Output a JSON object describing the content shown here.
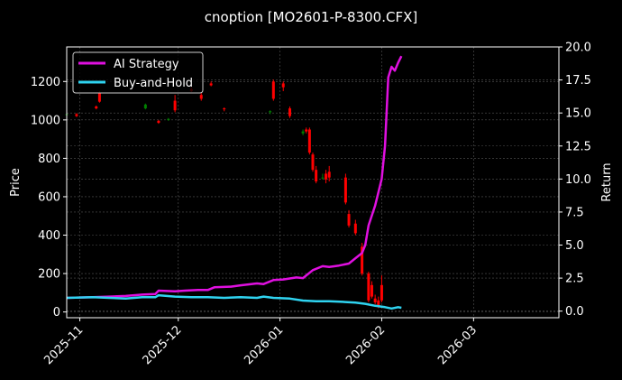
{
  "chart_data": {
    "type": "candlestick_with_lines",
    "title": "cnoption [MO2601-P-8300.CFX]",
    "ylabel_left": "Price",
    "ylabel_right": "Return",
    "x_ticks": [
      "2025-11",
      "2025-12",
      "2026-01",
      "2026-02",
      "2026-03"
    ],
    "x_tick_dates": [
      "2025-11-01",
      "2025-12-01",
      "2026-01-01",
      "2026-02-01",
      "2026-03-01"
    ],
    "x_range": [
      "2025-10-28",
      "2026-03-27"
    ],
    "y_left_ticks": [
      0,
      200,
      400,
      600,
      800,
      1000,
      1200
    ],
    "y_left_range": [
      -30,
      1380
    ],
    "y_right_ticks": [
      "0.0",
      "2.5",
      "5.0",
      "7.5",
      "10.0",
      "12.5",
      "15.0",
      "17.5",
      "20.0"
    ],
    "y_right_range": [
      -0.5,
      20.0
    ],
    "grid": true,
    "legend_position": "top-left",
    "colors": {
      "background": "#000000",
      "up": "#008000",
      "down": "#ff0000",
      "ai": "#e010e0",
      "bh": "#2fd3f0",
      "grid": "#555555"
    },
    "candles": [
      {
        "date": "2025-10-28",
        "open": 1030,
        "high": 1045,
        "low": 1020,
        "close": 1030
      },
      {
        "date": "2025-10-31",
        "open": 1030,
        "high": 1035,
        "low": 1015,
        "close": 1020
      },
      {
        "date": "2025-11-06",
        "open": 1070,
        "high": 1075,
        "low": 1055,
        "close": 1060
      },
      {
        "date": "2025-11-07",
        "open": 1140,
        "high": 1150,
        "low": 1090,
        "close": 1095
      },
      {
        "date": "2025-11-21",
        "open": 1060,
        "high": 1085,
        "low": 1055,
        "close": 1080
      },
      {
        "date": "2025-11-25",
        "open": 995,
        "high": 1000,
        "low": 980,
        "close": 985
      },
      {
        "date": "2025-11-28",
        "open": 1000,
        "high": 1010,
        "low": 995,
        "close": 1005
      },
      {
        "date": "2025-11-30",
        "open": 1100,
        "high": 1130,
        "low": 1040,
        "close": 1050
      },
      {
        "date": "2025-12-05",
        "open": 1160,
        "high": 1170,
        "low": 1145,
        "close": 1150
      },
      {
        "date": "2025-12-08",
        "open": 1130,
        "high": 1140,
        "low": 1100,
        "close": 1110
      },
      {
        "date": "2025-12-11",
        "open": 1190,
        "high": 1200,
        "low": 1175,
        "close": 1180
      },
      {
        "date": "2025-12-15",
        "open": 1060,
        "high": 1065,
        "low": 1045,
        "close": 1055
      },
      {
        "date": "2025-12-29",
        "open": 1040,
        "high": 1050,
        "low": 1030,
        "close": 1045
      },
      {
        "date": "2025-12-30",
        "open": 1200,
        "high": 1210,
        "low": 1100,
        "close": 1110
      },
      {
        "date": "2026-01-02",
        "open": 1190,
        "high": 1200,
        "low": 1150,
        "close": 1170
      },
      {
        "date": "2026-01-04",
        "open": 1060,
        "high": 1070,
        "low": 1010,
        "close": 1020
      },
      {
        "date": "2026-01-08",
        "open": 930,
        "high": 950,
        "low": 920,
        "close": 940
      },
      {
        "date": "2026-01-09",
        "open": 950,
        "high": 960,
        "low": 930,
        "close": 940
      },
      {
        "date": "2026-01-10",
        "open": 950,
        "high": 960,
        "low": 820,
        "close": 830
      },
      {
        "date": "2026-01-11",
        "open": 820,
        "high": 830,
        "low": 730,
        "close": 740
      },
      {
        "date": "2026-01-12",
        "open": 740,
        "high": 760,
        "low": 670,
        "close": 680
      },
      {
        "date": "2026-01-14",
        "open": 700,
        "high": 720,
        "low": 690,
        "close": 700
      },
      {
        "date": "2026-01-15",
        "open": 720,
        "high": 740,
        "low": 670,
        "close": 690
      },
      {
        "date": "2026-01-16",
        "open": 730,
        "high": 760,
        "low": 680,
        "close": 700
      },
      {
        "date": "2026-01-21",
        "open": 700,
        "high": 720,
        "low": 560,
        "close": 570
      },
      {
        "date": "2026-01-22",
        "open": 510,
        "high": 530,
        "low": 440,
        "close": 450
      },
      {
        "date": "2026-01-24",
        "open": 460,
        "high": 480,
        "low": 400,
        "close": 410
      },
      {
        "date": "2026-01-26",
        "open": 340,
        "high": 360,
        "low": 190,
        "close": 200
      },
      {
        "date": "2026-01-28",
        "open": 200,
        "high": 210,
        "low": 50,
        "close": 60
      },
      {
        "date": "2026-01-29",
        "open": 140,
        "high": 160,
        "low": 70,
        "close": 80
      },
      {
        "date": "2026-01-30",
        "open": 70,
        "high": 90,
        "low": 40,
        "close": 50
      },
      {
        "date": "2026-01-31",
        "open": 60,
        "high": 80,
        "low": 20,
        "close": 30
      },
      {
        "date": "2026-02-01",
        "open": 140,
        "high": 190,
        "low": 50,
        "close": 60
      }
    ],
    "series": [
      {
        "name": "AI Strategy",
        "points": [
          [
            "2025-10-28",
            1.0
          ],
          [
            "2025-11-05",
            1.05
          ],
          [
            "2025-11-10",
            1.1
          ],
          [
            "2025-11-15",
            1.15
          ],
          [
            "2025-11-20",
            1.25
          ],
          [
            "2025-11-24",
            1.3
          ],
          [
            "2025-11-25",
            1.55
          ],
          [
            "2025-11-30",
            1.5
          ],
          [
            "2025-12-03",
            1.55
          ],
          [
            "2025-12-07",
            1.6
          ],
          [
            "2025-12-10",
            1.6
          ],
          [
            "2025-12-12",
            1.8
          ],
          [
            "2025-12-17",
            1.85
          ],
          [
            "2025-12-20",
            1.95
          ],
          [
            "2025-12-25",
            2.1
          ],
          [
            "2025-12-27",
            2.05
          ],
          [
            "2025-12-30",
            2.35
          ],
          [
            "2026-01-02",
            2.4
          ],
          [
            "2026-01-06",
            2.55
          ],
          [
            "2026-01-08",
            2.5
          ],
          [
            "2026-01-11",
            3.1
          ],
          [
            "2026-01-14",
            3.4
          ],
          [
            "2026-01-16",
            3.35
          ],
          [
            "2026-01-19",
            3.45
          ],
          [
            "2026-01-22",
            3.6
          ],
          [
            "2026-01-24",
            4.0
          ],
          [
            "2026-01-26",
            4.4
          ],
          [
            "2026-01-27",
            5.0
          ],
          [
            "2026-01-28",
            6.5
          ],
          [
            "2026-01-30",
            8.0
          ],
          [
            "2026-02-01",
            10.0
          ],
          [
            "2026-02-02",
            12.5
          ],
          [
            "2026-02-03",
            17.7
          ],
          [
            "2026-02-04",
            18.5
          ],
          [
            "2026-02-05",
            18.2
          ],
          [
            "2026-02-06",
            18.8
          ],
          [
            "2026-02-07",
            19.3
          ]
        ]
      },
      {
        "name": "Buy-and-Hold",
        "points": [
          [
            "2025-10-28",
            1.0
          ],
          [
            "2025-11-05",
            1.05
          ],
          [
            "2025-11-10",
            1.0
          ],
          [
            "2025-11-15",
            0.95
          ],
          [
            "2025-11-20",
            1.05
          ],
          [
            "2025-11-24",
            1.05
          ],
          [
            "2025-11-25",
            1.2
          ],
          [
            "2025-11-30",
            1.1
          ],
          [
            "2025-12-05",
            1.05
          ],
          [
            "2025-12-10",
            1.05
          ],
          [
            "2025-12-15",
            1.0
          ],
          [
            "2025-12-20",
            1.05
          ],
          [
            "2025-12-25",
            1.0
          ],
          [
            "2025-12-27",
            1.1
          ],
          [
            "2025-12-30",
            1.0
          ],
          [
            "2026-01-04",
            0.95
          ],
          [
            "2026-01-08",
            0.8
          ],
          [
            "2026-01-12",
            0.75
          ],
          [
            "2026-01-16",
            0.75
          ],
          [
            "2026-01-20",
            0.7
          ],
          [
            "2026-01-24",
            0.65
          ],
          [
            "2026-01-27",
            0.55
          ],
          [
            "2026-01-30",
            0.4
          ],
          [
            "2026-02-02",
            0.3
          ],
          [
            "2026-02-04",
            0.2
          ],
          [
            "2026-02-06",
            0.3
          ],
          [
            "2026-02-07",
            0.25
          ]
        ]
      }
    ]
  }
}
